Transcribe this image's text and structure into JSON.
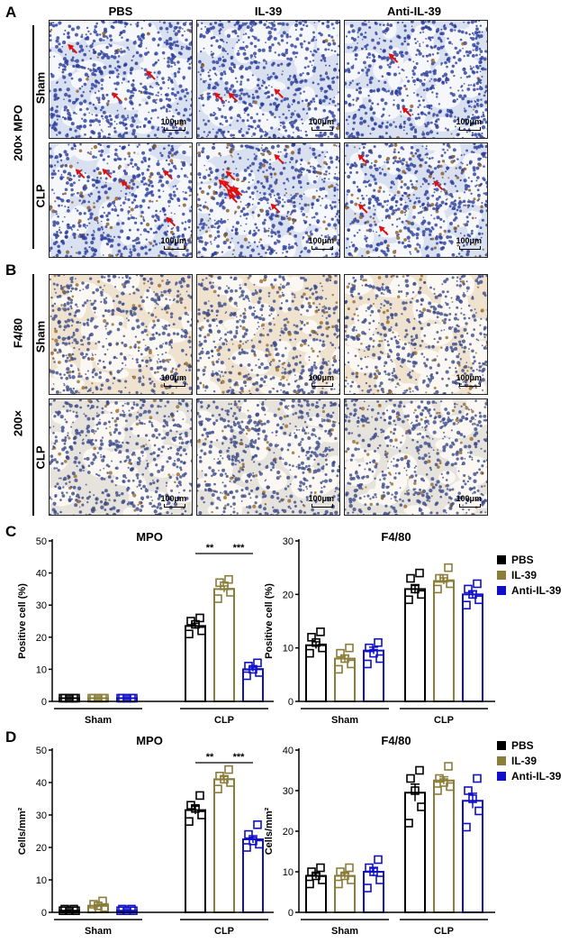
{
  "panel_a": {
    "letter": "A",
    "columns": [
      "PBS",
      "IL-39",
      "Anti-IL-39"
    ],
    "magnification": "200× MPO",
    "rows": [
      "Sham",
      "CLP"
    ],
    "scale": "100μm"
  },
  "panel_b": {
    "letter": "B",
    "stain": "F4/80",
    "magnification": "200×",
    "rows": [
      "Sham",
      "CLP"
    ],
    "scale": "100μm"
  },
  "panel_c": {
    "letter": "C"
  },
  "panel_d": {
    "letter": "D"
  },
  "legend": {
    "items": [
      {
        "label": "PBS",
        "color": "#000000"
      },
      {
        "label": "IL-39",
        "color": "#8b7d3a"
      },
      {
        "label": "Anti-IL-39",
        "color": "#1010c8"
      }
    ]
  },
  "chart_data": [
    {
      "type": "bar",
      "title": "MPO",
      "ylabel": "Positive cell (%)",
      "ylim": [
        0,
        50
      ],
      "yticks": [
        0,
        10,
        20,
        30,
        40,
        50
      ],
      "groups": [
        "Sham",
        "CLP"
      ],
      "series": [
        {
          "name": "PBS",
          "values": [
            1,
            23.5
          ],
          "points": [
            [
              1,
              1,
              1,
              1,
              1
            ],
            [
              21,
              22,
              24,
              25,
              26
            ]
          ]
        },
        {
          "name": "IL-39",
          "values": [
            1,
            35
          ],
          "points": [
            [
              1,
              1,
              1,
              1,
              1
            ],
            [
              32,
              34,
              36,
              37,
              38
            ]
          ]
        },
        {
          "name": "Anti-IL-39",
          "values": [
            1,
            10
          ],
          "points": [
            [
              1,
              1,
              1,
              1,
              1
            ],
            [
              8,
              9,
              10,
              11,
              12
            ]
          ]
        }
      ],
      "significance": [
        {
          "group": "CLP",
          "from": "PBS",
          "to": "IL-39",
          "label": "**"
        },
        {
          "group": "CLP",
          "from": "IL-39",
          "to": "Anti-IL-39",
          "label": "***"
        }
      ]
    },
    {
      "type": "bar",
      "title": "F4/80",
      "ylabel": "Positive cell (%)",
      "ylim": [
        0,
        30
      ],
      "yticks": [
        0,
        10,
        20,
        30
      ],
      "groups": [
        "Sham",
        "CLP"
      ],
      "series": [
        {
          "name": "PBS",
          "values": [
            10.5,
            21
          ],
          "points": [
            [
              9,
              10,
              11,
              12,
              13
            ],
            [
              19,
              20,
              21,
              23,
              24
            ]
          ]
        },
        {
          "name": "IL-39",
          "values": [
            8,
            22.5
          ],
          "points": [
            [
              6,
              7,
              8,
              9,
              10
            ],
            [
              21,
              22,
              23,
              23,
              25
            ]
          ]
        },
        {
          "name": "Anti-IL-39",
          "values": [
            9.5,
            20
          ],
          "points": [
            [
              7,
              8,
              9,
              10,
              11
            ],
            [
              18,
              19,
              20,
              21,
              22
            ]
          ]
        }
      ],
      "significance": []
    },
    {
      "type": "bar",
      "title": "MPO",
      "ylabel": "Cells/mm²",
      "ylim": [
        0,
        50
      ],
      "yticks": [
        0,
        10,
        20,
        30,
        40,
        50
      ],
      "groups": [
        "Sham",
        "CLP"
      ],
      "series": [
        {
          "name": "PBS",
          "values": [
            0.5,
            31.5
          ],
          "points": [
            [
              0.5,
              0.5,
              0.5,
              1,
              1
            ],
            [
              28,
              30,
              32,
              33,
              36
            ]
          ]
        },
        {
          "name": "IL-39",
          "values": [
            2,
            41
          ],
          "points": [
            [
              1,
              1.5,
              2,
              2.5,
              3.5
            ],
            [
              38,
              40,
              41,
              42,
              44
            ]
          ]
        },
        {
          "name": "Anti-IL-39",
          "values": [
            0.5,
            22.5
          ],
          "points": [
            [
              0.5,
              0.5,
              0.5,
              1,
              1
            ],
            [
              20,
              21,
              22,
              24,
              27
            ]
          ]
        }
      ],
      "significance": [
        {
          "group": "CLP",
          "from": "PBS",
          "to": "IL-39",
          "label": "**"
        },
        {
          "group": "CLP",
          "from": "IL-39",
          "to": "Anti-IL-39",
          "label": "***"
        }
      ]
    },
    {
      "type": "bar",
      "title": "F4/80",
      "ylabel": "Cells/mm²",
      "ylim": [
        0,
        40
      ],
      "yticks": [
        0,
        10,
        20,
        30,
        40
      ],
      "groups": [
        "Sham",
        "CLP"
      ],
      "series": [
        {
          "name": "PBS",
          "values": [
            9,
            29.5
          ],
          "points": [
            [
              7,
              8,
              9,
              10,
              11
            ],
            [
              22,
              26,
              30,
              33,
              35
            ]
          ]
        },
        {
          "name": "IL-39",
          "values": [
            9,
            32.5
          ],
          "points": [
            [
              7,
              8,
              9,
              10,
              11
            ],
            [
              30,
              31,
              32,
              33,
              36
            ]
          ]
        },
        {
          "name": "Anti-IL-39",
          "values": [
            10,
            27.5
          ],
          "points": [
            [
              6,
              8,
              10,
              11,
              13
            ],
            [
              21,
              25,
              28,
              30,
              33
            ]
          ]
        }
      ],
      "significance": []
    }
  ]
}
